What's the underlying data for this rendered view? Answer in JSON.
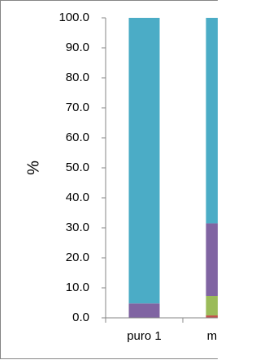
{
  "chart_data": {
    "type": "stacked-bar",
    "ylabel": "%",
    "categories": [
      "puro 1",
      "misto"
    ],
    "series": [
      {
        "color": "#c0504d",
        "values": [
          0,
          0.8
        ]
      },
      {
        "color": "#9bbb59",
        "values": [
          0,
          6.5
        ]
      },
      {
        "color": "#8064a2",
        "values": [
          4.8,
          24.2
        ]
      },
      {
        "color": "#4bacc6",
        "values": [
          95.2,
          68.5
        ]
      }
    ],
    "ylim": [
      0,
      100
    ],
    "yticks": [
      {
        "value": 0,
        "label": "0.0"
      },
      {
        "value": 10,
        "label": "10.0"
      },
      {
        "value": 20,
        "label": "20.0"
      },
      {
        "value": 30,
        "label": "30.0"
      },
      {
        "value": 40,
        "label": "40.0"
      },
      {
        "value": 50,
        "label": "50.0"
      },
      {
        "value": 60,
        "label": "60.0"
      },
      {
        "value": 70,
        "label": "70.0"
      },
      {
        "value": 80,
        "label": "80.0"
      },
      {
        "value": 90,
        "label": "90.0"
      },
      {
        "value": 100,
        "label": "100.0"
      }
    ]
  }
}
